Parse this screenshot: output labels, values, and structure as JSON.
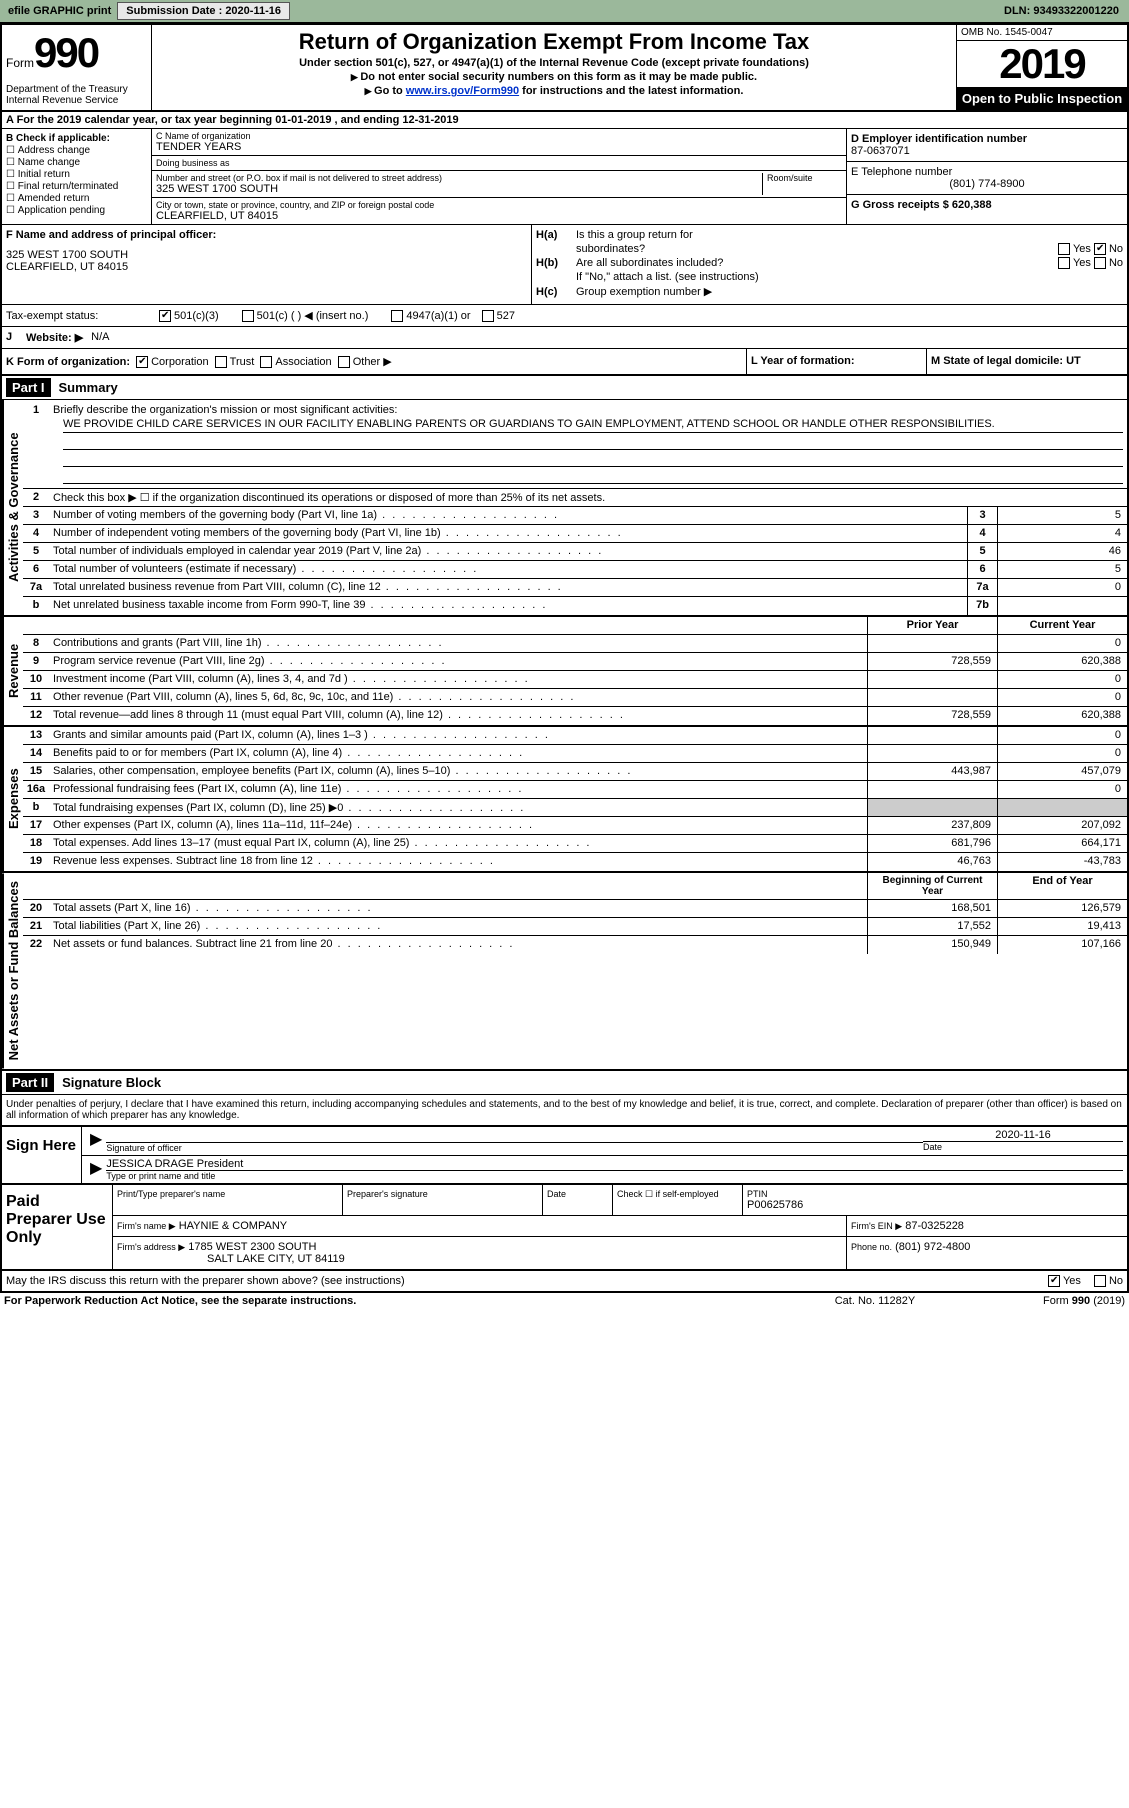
{
  "topbar": {
    "efile": "efile GRAPHIC print",
    "submission_label": "Submission Date : 2020-11-16",
    "dln": "DLN: 93493322001220"
  },
  "header": {
    "form_word": "Form",
    "form_num": "990",
    "dept": "Department of the Treasury\nInternal Revenue Service",
    "title": "Return of Organization Exempt From Income Tax",
    "subtitle": "Under section 501(c), 527, or 4947(a)(1) of the Internal Revenue Code (except private foundations)",
    "instr1": "Do not enter social security numbers on this form as it may be made public.",
    "instr2_pre": "Go to ",
    "instr2_link": "www.irs.gov/Form990",
    "instr2_post": " for instructions and the latest information.",
    "omb": "OMB No. 1545-0047",
    "year": "2019",
    "open": "Open to Public Inspection"
  },
  "row_a": "A For the 2019 calendar year, or tax year beginning 01-01-2019    , and ending 12-31-2019",
  "col_b": {
    "head": "B Check if applicable:",
    "items": [
      "Address change",
      "Name change",
      "Initial return",
      "Final return/terminated",
      "Amended return",
      "Application pending"
    ]
  },
  "col_c": {
    "name_label": "C Name of organization",
    "name": "TENDER YEARS",
    "dba_label": "Doing business as",
    "dba": "",
    "addr_label": "Number and street (or P.O. box if mail is not delivered to street address)",
    "room_label": "Room/suite",
    "addr": "325 WEST 1700 SOUTH",
    "city_label": "City or town, state or province, country, and ZIP or foreign postal code",
    "city": "CLEARFIELD, UT  84015"
  },
  "col_d": {
    "ein_label": "D Employer identification number",
    "ein": "87-0637071",
    "phone_label": "E Telephone number",
    "phone": "(801) 774-8900",
    "gross_label": "G Gross receipts $ 620,388"
  },
  "section_f": {
    "label": "F  Name and address of principal officer:",
    "addr1": "325 WEST 1700 SOUTH",
    "addr2": "CLEARFIELD, UT  84015"
  },
  "section_h": {
    "ha_label": "Is this a group return for",
    "ha_sub": "subordinates?",
    "hb_label": "Are all subordinates included?",
    "hb_note": "If \"No,\" attach a list. (see instructions)",
    "hc_label": "Group exemption number ▶",
    "ha": "H(a)",
    "hb": "H(b)",
    "hc": "H(c)",
    "yes": "Yes",
    "no": "No"
  },
  "tax_status": {
    "label": "Tax-exempt status:",
    "opt1": "501(c)(3)",
    "opt2": "501(c) (   ) ◀ (insert no.)",
    "opt3": "4947(a)(1) or",
    "opt4": "527"
  },
  "website": {
    "label_j": "J",
    "label": "Website: ▶",
    "value": "N/A"
  },
  "row_k": {
    "k_label": "K Form of organization:",
    "opts": [
      "Corporation",
      "Trust",
      "Association",
      "Other ▶"
    ],
    "l_label": "L Year of formation:",
    "l_val": "",
    "m_label": "M State of legal domicile: UT"
  },
  "part1": {
    "hdr": "Part I",
    "title": "Summary",
    "line1_label": "Briefly describe the organization's mission or most significant activities:",
    "line1_num": "1",
    "mission": "WE PROVIDE CHILD CARE SERVICES IN OUR FACILITY ENABLING PARENTS OR GUARDIANS TO GAIN EMPLOYMENT, ATTEND SCHOOL OR HANDLE OTHER RESPONSIBILITIES.",
    "line2_num": "2",
    "line2": "Check this box ▶ ☐  if the organization discontinued its operations or disposed of more than 25% of its net assets."
  },
  "vert_labels": {
    "activities": "Activities & Governance",
    "revenue": "Revenue",
    "expenses": "Expenses",
    "net": "Net Assets or Fund Balances"
  },
  "governance_lines": [
    {
      "n": "3",
      "label": "Number of voting members of the governing body (Part VI, line 1a)",
      "box": "3",
      "val": "5"
    },
    {
      "n": "4",
      "label": "Number of independent voting members of the governing body (Part VI, line 1b)",
      "box": "4",
      "val": "4"
    },
    {
      "n": "5",
      "label": "Total number of individuals employed in calendar year 2019 (Part V, line 2a)",
      "box": "5",
      "val": "46"
    },
    {
      "n": "6",
      "label": "Total number of volunteers (estimate if necessary)",
      "box": "6",
      "val": "5"
    },
    {
      "n": "7a",
      "label": "Total unrelated business revenue from Part VIII, column (C), line 12",
      "box": "7a",
      "val": "0"
    },
    {
      "n": "b",
      "label": "Net unrelated business taxable income from Form 990-T, line 39",
      "box": "7b",
      "val": ""
    }
  ],
  "two_col_header": {
    "prior": "Prior Year",
    "current": "Current Year"
  },
  "revenue_lines": [
    {
      "n": "8",
      "label": "Contributions and grants (Part VIII, line 1h)",
      "prior": "",
      "cur": "0"
    },
    {
      "n": "9",
      "label": "Program service revenue (Part VIII, line 2g)",
      "prior": "728,559",
      "cur": "620,388"
    },
    {
      "n": "10",
      "label": "Investment income (Part VIII, column (A), lines 3, 4, and 7d )",
      "prior": "",
      "cur": "0"
    },
    {
      "n": "11",
      "label": "Other revenue (Part VIII, column (A), lines 5, 6d, 8c, 9c, 10c, and 11e)",
      "prior": "",
      "cur": "0"
    },
    {
      "n": "12",
      "label": "Total revenue—add lines 8 through 11 (must equal Part VIII, column (A), line 12)",
      "prior": "728,559",
      "cur": "620,388"
    }
  ],
  "expense_lines": [
    {
      "n": "13",
      "label": "Grants and similar amounts paid (Part IX, column (A), lines 1–3 )",
      "prior": "",
      "cur": "0"
    },
    {
      "n": "14",
      "label": "Benefits paid to or for members (Part IX, column (A), line 4)",
      "prior": "",
      "cur": "0"
    },
    {
      "n": "15",
      "label": "Salaries, other compensation, employee benefits (Part IX, column (A), lines 5–10)",
      "prior": "443,987",
      "cur": "457,079"
    },
    {
      "n": "16a",
      "label": "Professional fundraising fees (Part IX, column (A), line 11e)",
      "prior": "",
      "cur": "0"
    },
    {
      "n": "b",
      "label": "Total fundraising expenses (Part IX, column (D), line 25) ▶0",
      "prior": "grey",
      "cur": "grey"
    },
    {
      "n": "17",
      "label": "Other expenses (Part IX, column (A), lines 11a–11d, 11f–24e)",
      "prior": "237,809",
      "cur": "207,092"
    },
    {
      "n": "18",
      "label": "Total expenses. Add lines 13–17 (must equal Part IX, column (A), line 25)",
      "prior": "681,796",
      "cur": "664,171"
    },
    {
      "n": "19",
      "label": "Revenue less expenses. Subtract line 18 from line 12",
      "prior": "46,763",
      "cur": "-43,783"
    }
  ],
  "net_header": {
    "begin": "Beginning of Current Year",
    "end": "End of Year"
  },
  "net_lines": [
    {
      "n": "20",
      "label": "Total assets (Part X, line 16)",
      "prior": "168,501",
      "cur": "126,579"
    },
    {
      "n": "21",
      "label": "Total liabilities (Part X, line 26)",
      "prior": "17,552",
      "cur": "19,413"
    },
    {
      "n": "22",
      "label": "Net assets or fund balances. Subtract line 21 from line 20",
      "prior": "150,949",
      "cur": "107,166"
    }
  ],
  "part2": {
    "hdr": "Part II",
    "title": "Signature Block",
    "declaration": "Under penalties of perjury, I declare that I have examined this return, including accompanying schedules and statements, and to the best of my knowledge and belief, it is true, correct, and complete. Declaration of preparer (other than officer) is based on all information of which preparer has any knowledge."
  },
  "sign": {
    "here": "Sign Here",
    "sig_label": "Signature of officer",
    "date_label": "Date",
    "date": "2020-11-16",
    "name": "JESSICA DRAGE President",
    "name_label": "Type or print name and title"
  },
  "prep": {
    "title": "Paid Preparer Use Only",
    "name_label": "Print/Type preparer's name",
    "sig_label": "Preparer's signature",
    "date_label": "Date",
    "check_label": "Check ☐ if self-employed",
    "ptin_label": "PTIN",
    "ptin": "P00625786",
    "firm_label": "Firm's name    ▶",
    "firm": "HAYNIE & COMPANY",
    "ein_label": "Firm's EIN ▶",
    "ein": "87-0325228",
    "addr_label": "Firm's address ▶",
    "addr1": "1785 WEST 2300 SOUTH",
    "addr2": "SALT LAKE CITY, UT  84119",
    "phone_label": "Phone no.",
    "phone": "(801) 972-4800",
    "discuss": "May the IRS discuss this return with the preparer shown above? (see instructions)",
    "yes": "Yes",
    "no": "No"
  },
  "footer": {
    "left": "For Paperwork Reduction Act Notice, see the separate instructions.",
    "mid": "Cat. No. 11282Y",
    "right": "Form 990 (2019)"
  }
}
